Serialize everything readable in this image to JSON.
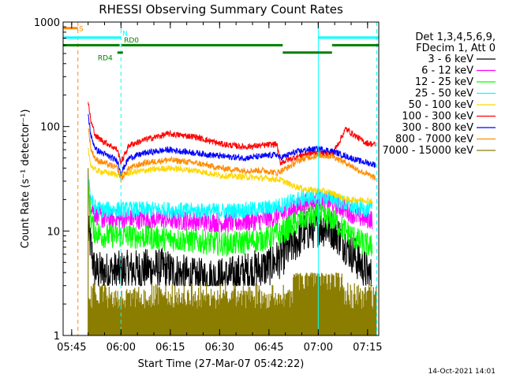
{
  "chart_data": {
    "type": "line",
    "title": "RHESSI Observing Summary Count Rates",
    "xlabel": "Start Time (27-Mar-07 05:42:22)",
    "ylabel": "Count Rate (s⁻¹ detector⁻¹)",
    "y_scale": "log",
    "ylim": [
      1,
      1000
    ],
    "xlim_minutes": [
      0,
      96
    ],
    "x_ticks": [
      {
        "label": "05:45",
        "minute": 2.6
      },
      {
        "label": "06:00",
        "minute": 17.6
      },
      {
        "label": "06:15",
        "minute": 32.6
      },
      {
        "label": "06:30",
        "minute": 47.6
      },
      {
        "label": "06:45",
        "minute": 62.6
      },
      {
        "label": "07:00",
        "minute": 77.6
      },
      {
        "label": "07:15",
        "minute": 92.6
      }
    ],
    "y_ticks": [
      "1",
      "10",
      "100",
      "1000"
    ],
    "legend_header": [
      "Det 1,3,4,5,6,9,",
      "FDecim 1, Att 0"
    ],
    "footer_date": "14-Oct-2021 14:01",
    "series": [
      {
        "name": "3 - 6 keV",
        "color": "#000000",
        "anchors": [
          [
            7.6,
            10
          ],
          [
            8.5,
            7
          ],
          [
            9.5,
            4.2
          ],
          [
            12,
            4
          ],
          [
            20,
            4.2
          ],
          [
            30,
            4.4
          ],
          [
            40,
            3.5
          ],
          [
            50,
            3.6
          ],
          [
            58,
            4.2
          ],
          [
            62,
            4.5
          ],
          [
            66,
            5.5
          ],
          [
            70,
            7.5
          ],
          [
            74,
            10
          ],
          [
            78,
            11.2
          ],
          [
            82,
            10.5
          ],
          [
            86,
            7.5
          ],
          [
            90,
            5
          ],
          [
            94,
            3.5
          ]
        ],
        "noise": 0.2,
        "floor": 3
      },
      {
        "name": "6 - 12 keV",
        "color": "#ff00ff",
        "anchors": [
          [
            7.6,
            30
          ],
          [
            8.5,
            18
          ],
          [
            9.5,
            15
          ],
          [
            12,
            13
          ],
          [
            20,
            13
          ],
          [
            30,
            13
          ],
          [
            40,
            12.5
          ],
          [
            50,
            12
          ],
          [
            58,
            12.5
          ],
          [
            62,
            13
          ],
          [
            66,
            14
          ],
          [
            70,
            16
          ],
          [
            74,
            18.5
          ],
          [
            78,
            19.5
          ],
          [
            82,
            18.5
          ],
          [
            86,
            16
          ],
          [
            90,
            13.5
          ],
          [
            94,
            13
          ]
        ],
        "noise": 0.1
      },
      {
        "name": "12 - 25 keV",
        "color": "#00ff00",
        "anchors": [
          [
            7.6,
            25
          ],
          [
            8.5,
            13
          ],
          [
            9.5,
            10
          ],
          [
            12,
            9
          ],
          [
            20,
            9
          ],
          [
            30,
            8.5
          ],
          [
            40,
            8
          ],
          [
            50,
            7.5
          ],
          [
            58,
            8
          ],
          [
            62,
            8.5
          ],
          [
            66,
            9.5
          ],
          [
            70,
            11.5
          ],
          [
            74,
            13.5
          ],
          [
            78,
            14
          ],
          [
            82,
            13
          ],
          [
            86,
            10
          ],
          [
            90,
            8
          ],
          [
            94,
            7
          ]
        ],
        "noise": 0.12
      },
      {
        "name": "25 - 50 keV",
        "color": "#00ffff",
        "anchors": [
          [
            7.6,
            35
          ],
          [
            8.5,
            20
          ],
          [
            9.5,
            17
          ],
          [
            12,
            16
          ],
          [
            20,
            16
          ],
          [
            30,
            16
          ],
          [
            40,
            15.5
          ],
          [
            50,
            15.5
          ],
          [
            58,
            16
          ],
          [
            62,
            16.5
          ],
          [
            66,
            17.5
          ],
          [
            70,
            19.5
          ],
          [
            74,
            21
          ],
          [
            78,
            21.5
          ],
          [
            82,
            20.5
          ],
          [
            86,
            18
          ],
          [
            90,
            16.5
          ],
          [
            94,
            16
          ]
        ],
        "noise": 0.08
      },
      {
        "name": "50 - 100 keV",
        "color": "#ffd700",
        "anchors": [
          [
            7.6,
            60
          ],
          [
            8.5,
            42
          ],
          [
            10,
            38
          ],
          [
            17.6,
            34
          ],
          [
            20,
            36
          ],
          [
            25,
            38
          ],
          [
            32,
            40
          ],
          [
            40,
            38
          ],
          [
            48,
            34
          ],
          [
            55,
            33
          ],
          [
            61,
            32
          ],
          [
            66,
            31
          ],
          [
            70,
            27
          ],
          [
            74,
            25
          ],
          [
            78,
            24.5
          ],
          [
            82,
            23
          ],
          [
            86,
            20
          ],
          [
            90,
            20
          ],
          [
            94,
            19.5
          ]
        ],
        "noise": 0.03
      },
      {
        "name": "100 - 300 keV",
        "color": "#ff0000",
        "anchors": [
          [
            7.6,
            170
          ],
          [
            8.5,
            110
          ],
          [
            10,
            80
          ],
          [
            16.5,
            60
          ],
          [
            17.6,
            45
          ],
          [
            20,
            66
          ],
          [
            25,
            75
          ],
          [
            32,
            85
          ],
          [
            40,
            80
          ],
          [
            48,
            68
          ],
          [
            55,
            64
          ],
          [
            61,
            66
          ],
          [
            65,
            68
          ],
          [
            66,
            45
          ],
          [
            70,
            50
          ],
          [
            74,
            55
          ],
          [
            78,
            56
          ],
          [
            82,
            55
          ],
          [
            86,
            95
          ],
          [
            88,
            85
          ],
          [
            92,
            70
          ],
          [
            95,
            67
          ]
        ],
        "noise": 0.03
      },
      {
        "name": "300 - 800 keV",
        "color": "#0000ff",
        "anchors": [
          [
            7.6,
            130
          ],
          [
            8.5,
            80
          ],
          [
            10,
            60
          ],
          [
            16.5,
            47
          ],
          [
            17.6,
            36
          ],
          [
            20,
            50
          ],
          [
            25,
            56
          ],
          [
            32,
            60
          ],
          [
            40,
            56
          ],
          [
            48,
            52
          ],
          [
            55,
            50
          ],
          [
            61,
            52
          ],
          [
            65,
            54
          ],
          [
            66,
            50
          ],
          [
            70,
            56
          ],
          [
            74,
            60
          ],
          [
            78,
            61
          ],
          [
            82,
            58
          ],
          [
            86,
            52
          ],
          [
            90,
            47
          ],
          [
            95,
            43
          ]
        ],
        "noise": 0.03
      },
      {
        "name": "800 - 7000 keV",
        "color": "#ff8c00",
        "anchors": [
          [
            7.6,
            100
          ],
          [
            8.5,
            60
          ],
          [
            10,
            48
          ],
          [
            16.5,
            40
          ],
          [
            17.6,
            31
          ],
          [
            20,
            40
          ],
          [
            25,
            45
          ],
          [
            32,
            48
          ],
          [
            40,
            45
          ],
          [
            48,
            40
          ],
          [
            55,
            38
          ],
          [
            61,
            38
          ],
          [
            65,
            36
          ],
          [
            68,
            40
          ],
          [
            72,
            48
          ],
          [
            76,
            52
          ],
          [
            78,
            53
          ],
          [
            82,
            52
          ],
          [
            86,
            45
          ],
          [
            90,
            38
          ],
          [
            95,
            32
          ]
        ],
        "noise": 0.03
      },
      {
        "name": "7000 - 15000 keV",
        "color": "#8b7d00",
        "anchors": [],
        "noise": 0
      }
    ],
    "annotations": [
      {
        "label": "S",
        "color": "#ff8c00",
        "x_start_minute": 0,
        "x_end_minute": 4.5,
        "level": 875
      },
      {
        "label": "N",
        "color": "#00ffff",
        "segments": [
          [
            0,
            17.6
          ],
          [
            77.6,
            96
          ]
        ],
        "level": 710
      },
      {
        "label": "RD0",
        "color": "#008000",
        "segments": [
          [
            0,
            17.2
          ],
          [
            17.8,
            66.8
          ],
          [
            81.8,
            96
          ]
        ],
        "level": 600
      },
      {
        "label": "RD4",
        "color": "#008000",
        "segments": [
          [
            16.5,
            18.2
          ],
          [
            66.8,
            81.8
          ]
        ],
        "level": 510
      }
    ],
    "vertical_lines": [
      {
        "minute": 4.5,
        "color": "#ff8c00",
        "style": "dashed"
      },
      {
        "minute": 17.6,
        "color": "#00ffff",
        "style": "dashed"
      },
      {
        "minute": 77.6,
        "color": "#00ffff",
        "style": "solid"
      },
      {
        "minute": 95.4,
        "color": "#00ffff",
        "style": "dashed"
      }
    ]
  }
}
